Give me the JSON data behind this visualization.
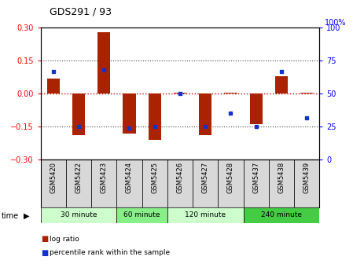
{
  "title": "GDS291 / 93",
  "samples": [
    "GSM5420",
    "GSM5422",
    "GSM5423",
    "GSM5424",
    "GSM5425",
    "GSM5426",
    "GSM5427",
    "GSM5428",
    "GSM5437",
    "GSM5438",
    "GSM5439"
  ],
  "log_ratio": [
    0.07,
    -0.19,
    0.28,
    -0.18,
    -0.21,
    0.003,
    -0.19,
    0.003,
    -0.14,
    0.08,
    0.003
  ],
  "percentile": [
    67,
    25,
    68,
    24,
    25,
    50,
    25,
    35,
    25,
    67,
    32
  ],
  "ylim": [
    -0.3,
    0.3
  ],
  "yticks_left": [
    -0.3,
    -0.15,
    0.0,
    0.15,
    0.3
  ],
  "yticks_right": [
    0,
    25,
    50,
    75,
    100
  ],
  "bar_color": "#aa2200",
  "dot_color": "#1133cc",
  "hline0_color": "#cc0000",
  "dotted_color": "#444444",
  "time_groups": [
    {
      "label": "30 minute",
      "start": 0,
      "end": 2,
      "color": "#ccffcc"
    },
    {
      "label": "60 minute",
      "start": 3,
      "end": 4,
      "color": "#88ee88"
    },
    {
      "label": "120 minute",
      "start": 5,
      "end": 7,
      "color": "#ccffcc"
    },
    {
      "label": "240 minute",
      "start": 8,
      "end": 10,
      "color": "#44cc44"
    }
  ],
  "legend_log": "log ratio",
  "legend_pct": "percentile rank within the sample",
  "background_color": "#ffffff"
}
